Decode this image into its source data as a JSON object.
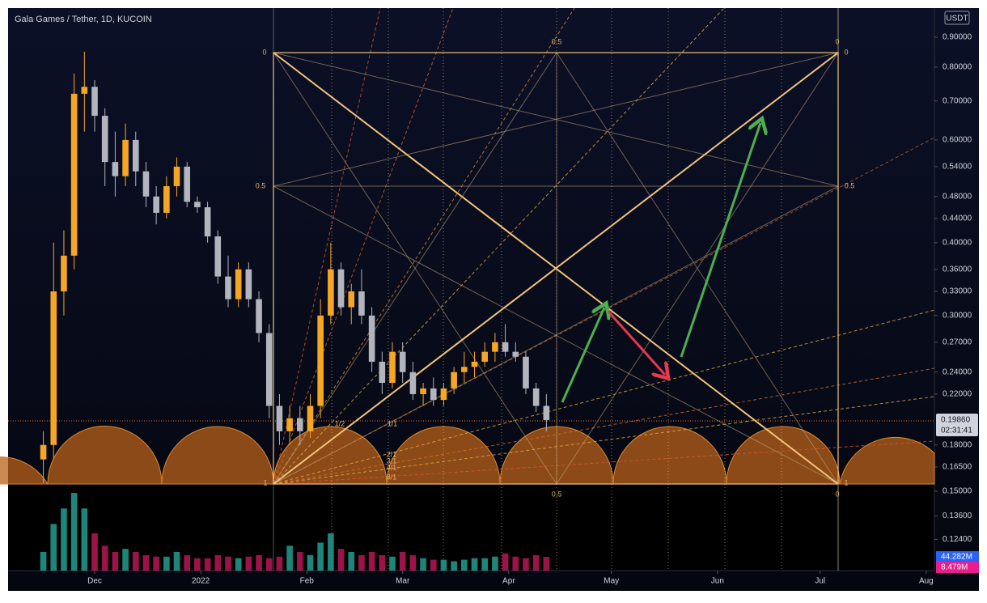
{
  "chart_data": {
    "type": "candlestick",
    "title": "Gala Games / Tether, 1D, KUCOIN",
    "currency": "USDT",
    "x": [
      -15,
      -12,
      -9,
      -6,
      -3,
      0,
      3,
      6,
      9,
      12,
      15,
      18,
      21,
      24,
      27,
      30,
      33,
      36,
      39,
      42,
      45,
      48,
      51,
      54,
      57,
      60,
      63,
      66,
      69,
      72,
      75,
      78,
      81,
      84,
      87,
      90,
      93,
      96,
      99,
      102,
      105,
      108,
      111,
      114,
      117,
      120,
      123,
      126,
      129,
      132
    ],
    "open": [
      0.17,
      0.18,
      0.33,
      0.38,
      0.72,
      0.74,
      0.66,
      0.55,
      0.52,
      0.6,
      0.53,
      0.48,
      0.45,
      0.5,
      0.54,
      0.47,
      0.46,
      0.41,
      0.35,
      0.32,
      0.36,
      0.32,
      0.28,
      0.21,
      0.19,
      0.2,
      0.19,
      0.21,
      0.3,
      0.36,
      0.31,
      0.33,
      0.3,
      0.25,
      0.23,
      0.26,
      0.24,
      0.22,
      0.225,
      0.215,
      0.225,
      0.24,
      0.245,
      0.25,
      0.26,
      0.27,
      0.26,
      0.255,
      0.225,
      0.21
    ],
    "high": [
      0.19,
      0.4,
      0.42,
      0.78,
      0.85,
      0.76,
      0.68,
      0.62,
      0.64,
      0.62,
      0.55,
      0.5,
      0.52,
      0.56,
      0.55,
      0.48,
      0.47,
      0.42,
      0.38,
      0.37,
      0.37,
      0.33,
      0.29,
      0.22,
      0.21,
      0.21,
      0.22,
      0.32,
      0.4,
      0.37,
      0.34,
      0.36,
      0.31,
      0.26,
      0.27,
      0.27,
      0.25,
      0.23,
      0.235,
      0.23,
      0.245,
      0.26,
      0.26,
      0.27,
      0.28,
      0.29,
      0.27,
      0.26,
      0.23,
      0.22
    ],
    "low": [
      0.155,
      0.17,
      0.3,
      0.36,
      0.62,
      0.62,
      0.5,
      0.48,
      0.5,
      0.5,
      0.46,
      0.43,
      0.44,
      0.48,
      0.46,
      0.45,
      0.4,
      0.34,
      0.31,
      0.31,
      0.31,
      0.27,
      0.2,
      0.18,
      0.18,
      0.18,
      0.185,
      0.2,
      0.29,
      0.3,
      0.29,
      0.29,
      0.24,
      0.22,
      0.225,
      0.23,
      0.215,
      0.21,
      0.21,
      0.21,
      0.22,
      0.23,
      0.235,
      0.245,
      0.25,
      0.255,
      0.25,
      0.22,
      0.205,
      0.19
    ],
    "close": [
      0.18,
      0.33,
      0.38,
      0.72,
      0.74,
      0.66,
      0.55,
      0.52,
      0.6,
      0.53,
      0.48,
      0.45,
      0.5,
      0.54,
      0.47,
      0.46,
      0.41,
      0.35,
      0.32,
      0.36,
      0.32,
      0.28,
      0.21,
      0.19,
      0.2,
      0.19,
      0.21,
      0.3,
      0.36,
      0.31,
      0.33,
      0.3,
      0.25,
      0.23,
      0.26,
      0.24,
      0.22,
      0.225,
      0.215,
      0.225,
      0.24,
      0.245,
      0.25,
      0.26,
      0.27,
      0.26,
      0.255,
      0.225,
      0.21,
      0.1986
    ],
    "volume": [
      60,
      150,
      200,
      250,
      200,
      120,
      80,
      60,
      70,
      60,
      50,
      45,
      45,
      60,
      50,
      40,
      40,
      50,
      45,
      40,
      45,
      50,
      40,
      45,
      80,
      60,
      50,
      90,
      120,
      70,
      60,
      50,
      60,
      50,
      45,
      60,
      50,
      40,
      35,
      35,
      30,
      35,
      40,
      40,
      45,
      55,
      45,
      40,
      50,
      44.282
    ],
    "volume_ylim": [
      0,
      1810
    ],
    "up_color": "#f5a623",
    "down_color": "#b2b5be",
    "vol_up_color": "#26a69a",
    "vol_down_color": "#c2185b",
    "log_scale": true,
    "grid": false,
    "xlim": [
      -25.3,
      245.4
    ],
    "xticks": [
      {
        "value": 0,
        "label": "Dec"
      },
      {
        "value": 31,
        "label": "2022"
      },
      {
        "value": 62,
        "label": "Feb"
      },
      {
        "value": 90,
        "label": "Mar"
      },
      {
        "value": 121,
        "label": "Apr"
      },
      {
        "value": 151,
        "label": "May"
      },
      {
        "value": 182,
        "label": "Jun"
      },
      {
        "value": 212,
        "label": "Jul"
      },
      {
        "value": 243,
        "label": "Aug"
      }
    ],
    "ylim": [
      0.1096,
      1.0097
    ],
    "yticks": [
      {
        "value": 0.124,
        "label": "0.12400"
      },
      {
        "value": 0.136,
        "label": "0.13600"
      },
      {
        "value": 0.15,
        "label": "0.15000"
      },
      {
        "value": 0.165,
        "label": "0.16500"
      },
      {
        "value": 0.18,
        "label": "0.18000"
      },
      {
        "value": 0.22,
        "label": "0.22000"
      },
      {
        "value": 0.24,
        "label": "0.24000"
      },
      {
        "value": 0.27,
        "label": "0.27000"
      },
      {
        "value": 0.3,
        "label": "0.30000"
      },
      {
        "value": 0.33,
        "label": "0.33000"
      },
      {
        "value": 0.36,
        "label": "0.36000"
      },
      {
        "value": 0.4,
        "label": "0.40000"
      },
      {
        "value": 0.44,
        "label": "0.44000"
      },
      {
        "value": 0.48,
        "label": "0.48000"
      },
      {
        "value": 0.54,
        "label": "0.54000"
      },
      {
        "value": 0.6,
        "label": "0.60000"
      },
      {
        "value": 0.7,
        "label": "0.70000"
      },
      {
        "value": 0.8,
        "label": "0.80000"
      },
      {
        "value": 0.9,
        "label": "0.90000"
      }
    ],
    "last_price": {
      "value": 0.1986,
      "label": "0.19860"
    },
    "countdown": "02:31:41",
    "volume_badges": [
      "44.282M",
      "8.479M"
    ],
    "annotations": [
      "0",
      "0",
      "0",
      "0.5",
      "0.5",
      "0.5",
      "1",
      "0.5",
      "0",
      "1",
      "1/2",
      "1/1",
      "2/1",
      "3/1",
      "4/1",
      "8/1"
    ]
  }
}
